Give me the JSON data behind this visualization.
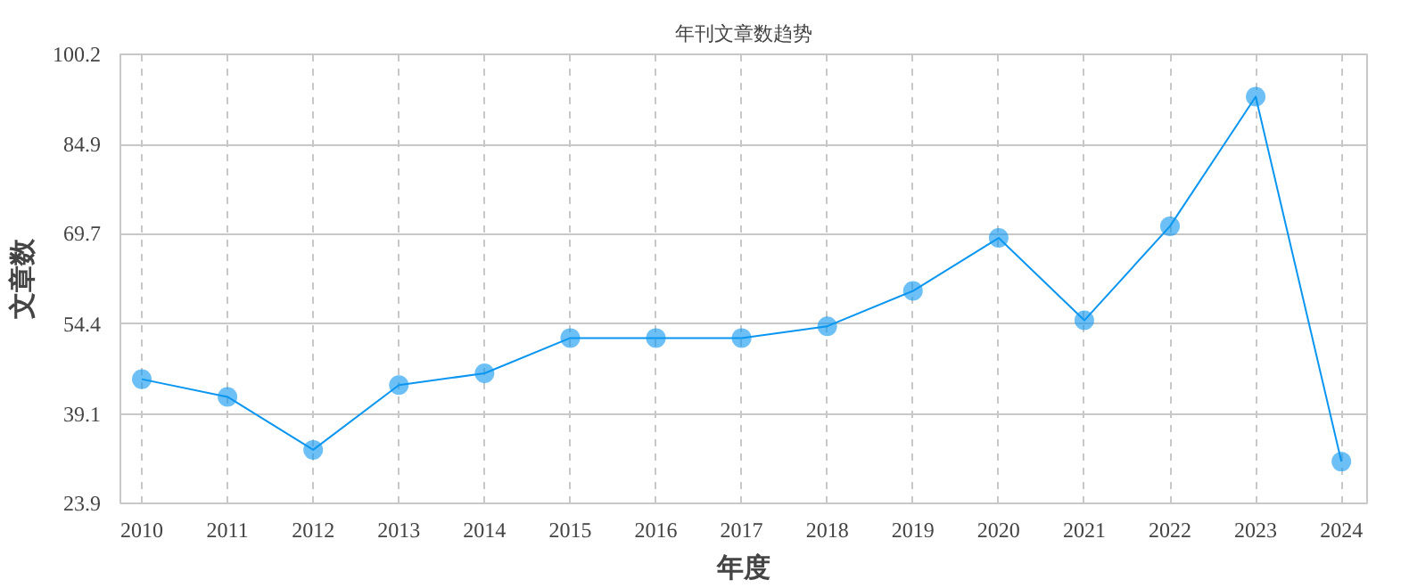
{
  "chart_data": {
    "type": "line",
    "title": "年刊文章数趋势",
    "xlabel": "年度",
    "ylabel": "文章数",
    "categories": [
      "2010",
      "2011",
      "2012",
      "2013",
      "2014",
      "2015",
      "2016",
      "2017",
      "2018",
      "2019",
      "2020",
      "2021",
      "2022",
      "2023",
      "2024"
    ],
    "series": [
      {
        "color": "#0a96f0",
        "values": [
          45,
          42,
          33,
          44,
          46,
          52,
          52,
          52,
          54,
          60,
          69,
          55,
          71,
          93,
          31
        ]
      }
    ],
    "ylim": [
      23.9,
      100.2
    ],
    "yticks": [
      23.9,
      39.1,
      54.4,
      69.7,
      84.9,
      100.2
    ],
    "grid": true,
    "marker": "circle",
    "line_style": "solid"
  }
}
